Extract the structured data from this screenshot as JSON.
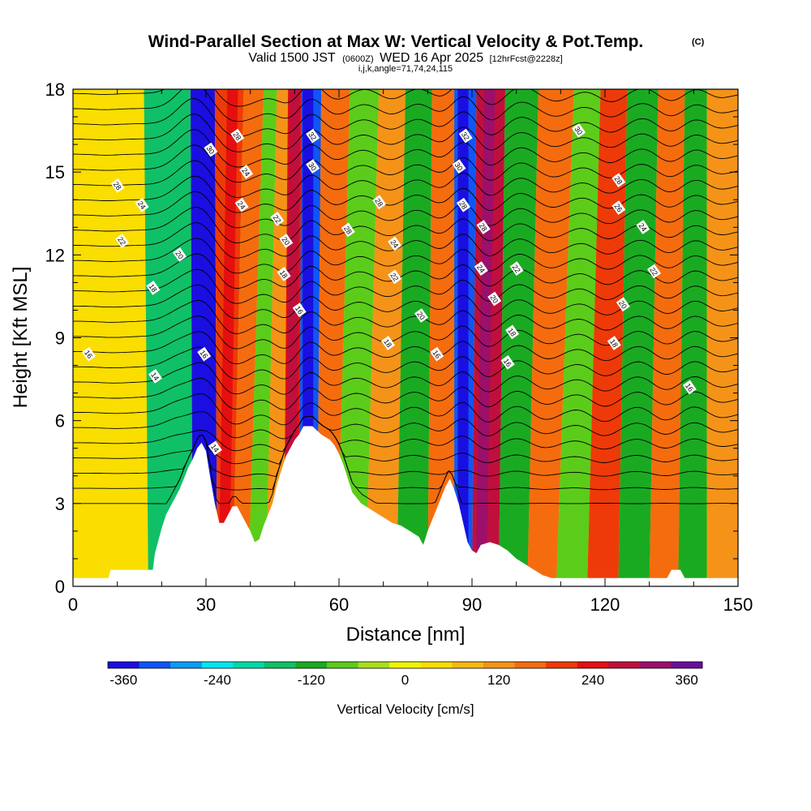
{
  "header": {
    "title": "Wind-Parallel Section at Max W: Vertical Velocity & Pot.Temp.",
    "title_mark": "(C)",
    "subtitle_main": "Valid 1500 JST",
    "subtitle_utc": "(0600Z)",
    "subtitle_date": "WED 16 Apr 2025",
    "subtitle_fcst": "[12hrFcst@2228z]",
    "section_info": "i,j,k,angle=71,74,24,115"
  },
  "chart_data": {
    "type": "heatmap",
    "xlabel": "Distance [nm]",
    "ylabel": "Height [Kft MSL]",
    "xlim": [
      0,
      150
    ],
    "ylim": [
      0,
      18
    ],
    "x_ticks": [
      0,
      30,
      60,
      90,
      120,
      150
    ],
    "y_ticks": [
      0,
      3,
      6,
      9,
      12,
      15,
      18
    ],
    "x_tick_labels": [
      "0",
      "30",
      "60",
      "90",
      "120",
      "150"
    ],
    "y_tick_labels": [
      "0",
      "3",
      "6",
      "9",
      "12",
      "15",
      "18"
    ],
    "terrain": {
      "x": [
        0,
        8,
        8.5,
        18,
        18.5,
        20,
        21,
        22,
        23,
        24,
        25,
        26,
        27,
        28,
        29,
        30,
        31,
        32,
        33,
        34,
        36,
        37,
        38,
        40,
        41,
        42,
        43,
        44,
        45,
        46,
        47,
        48,
        49,
        50,
        51,
        52,
        54,
        56,
        58,
        59,
        60,
        61,
        62,
        63,
        64,
        65,
        67,
        69,
        71,
        72,
        74,
        76,
        78,
        79,
        80,
        81,
        82,
        83,
        84,
        85,
        86,
        87,
        88,
        89,
        90,
        91,
        92,
        94,
        96,
        98,
        100,
        102,
        104,
        106,
        108,
        110,
        112,
        120,
        130,
        134,
        135,
        137,
        138,
        140,
        150
      ],
      "y": [
        0.3,
        0.3,
        0.6,
        0.6,
        1.2,
        2.1,
        2.6,
        2.9,
        3.2,
        3.5,
        3.9,
        4.3,
        4.6,
        5.0,
        5.2,
        4.9,
        3.9,
        3.0,
        2.3,
        2.3,
        2.9,
        2.9,
        2.6,
        2.0,
        1.6,
        1.7,
        2.2,
        2.6,
        3.0,
        3.7,
        4.2,
        4.7,
        5.0,
        5.3,
        5.5,
        5.8,
        5.8,
        5.5,
        5.3,
        5.1,
        4.8,
        4.4,
        3.9,
        3.4,
        3.2,
        3.0,
        2.8,
        2.6,
        2.4,
        2.3,
        2.2,
        2.0,
        1.8,
        1.5,
        2.0,
        2.4,
        2.8,
        3.2,
        3.6,
        3.9,
        3.5,
        3.0,
        2.3,
        1.6,
        1.3,
        1.2,
        1.5,
        1.6,
        1.5,
        1.3,
        1.0,
        0.8,
        0.6,
        0.4,
        0.3,
        0.3,
        0.3,
        0.3,
        0.3,
        0.3,
        0.6,
        0.6,
        0.3,
        0.3,
        0.3
      ]
    },
    "vertical_velocity_bands": [
      {
        "x_base": 11,
        "x_top": 7,
        "w": 20
      },
      {
        "x_base": 23,
        "x_top": 25,
        "w": -180
      },
      {
        "x_base": 31,
        "x_top": 28,
        "w": -360
      },
      {
        "x_base": 34,
        "x_top": 36,
        "w": 200
      },
      {
        "x_base": 38,
        "x_top": 41,
        "w": 140
      },
      {
        "x_base": 41,
        "x_top": 45,
        "w": -100
      },
      {
        "x_base": 46,
        "x_top": 47,
        "w": 120
      },
      {
        "x_base": 49,
        "x_top": 50,
        "w": 250
      },
      {
        "x_base": 53,
        "x_top": 53,
        "w": -340
      },
      {
        "x_base": 57,
        "x_top": 59,
        "w": 150
      },
      {
        "x_base": 62,
        "x_top": 66,
        "w": -100
      },
      {
        "x_base": 70,
        "x_top": 72,
        "w": 130
      },
      {
        "x_base": 76,
        "x_top": 78,
        "w": -120
      },
      {
        "x_base": 84,
        "x_top": 84,
        "w": 170
      },
      {
        "x_base": 88,
        "x_top": 88,
        "w": -330
      },
      {
        "x_base": 92,
        "x_top": 94,
        "w": 260
      },
      {
        "x_base": 100,
        "x_top": 101,
        "w": -140
      },
      {
        "x_base": 105,
        "x_top": 109,
        "w": 150
      },
      {
        "x_base": 113,
        "x_top": 117,
        "w": -80
      },
      {
        "x_base": 119,
        "x_top": 121,
        "w": 190
      },
      {
        "x_base": 127,
        "x_top": 129,
        "w": -120
      },
      {
        "x_base": 133,
        "x_top": 135,
        "w": 170
      },
      {
        "x_base": 140,
        "x_top": 141,
        "w": -140
      },
      {
        "x_base": 146,
        "x_top": 145,
        "w": 120
      }
    ],
    "theta_contour_labels": [
      {
        "text": "30",
        "x": 31,
        "y": 15.8
      },
      {
        "text": "28",
        "x": 37,
        "y": 16.3
      },
      {
        "text": "24",
        "x": 39,
        "y": 15.0
      },
      {
        "text": "24",
        "x": 38,
        "y": 13.8
      },
      {
        "text": "22",
        "x": 46,
        "y": 13.3
      },
      {
        "text": "20",
        "x": 48,
        "y": 12.5
      },
      {
        "text": "18",
        "x": 47.5,
        "y": 11.3
      },
      {
        "text": "16",
        "x": 51,
        "y": 10.0
      },
      {
        "text": "32",
        "x": 54,
        "y": 16.3
      },
      {
        "text": "30",
        "x": 54,
        "y": 15.2
      },
      {
        "text": "28",
        "x": 62,
        "y": 12.9
      },
      {
        "text": "28",
        "x": 69,
        "y": 13.9
      },
      {
        "text": "24",
        "x": 72.5,
        "y": 12.4
      },
      {
        "text": "22",
        "x": 72.5,
        "y": 11.2
      },
      {
        "text": "20",
        "x": 78.5,
        "y": 9.8
      },
      {
        "text": "18",
        "x": 71,
        "y": 8.8
      },
      {
        "text": "16",
        "x": 82,
        "y": 8.4
      },
      {
        "text": "32",
        "x": 88.5,
        "y": 16.3
      },
      {
        "text": "30",
        "x": 87,
        "y": 15.2
      },
      {
        "text": "28",
        "x": 88,
        "y": 13.8
      },
      {
        "text": "28",
        "x": 92.5,
        "y": 13.0
      },
      {
        "text": "24",
        "x": 92,
        "y": 11.5
      },
      {
        "text": "22",
        "x": 100,
        "y": 11.5
      },
      {
        "text": "20",
        "x": 95,
        "y": 10.4
      },
      {
        "text": "18",
        "x": 99,
        "y": 9.2
      },
      {
        "text": "16",
        "x": 98,
        "y": 8.1
      },
      {
        "text": "30",
        "x": 114,
        "y": 16.5
      },
      {
        "text": "28",
        "x": 123,
        "y": 14.7
      },
      {
        "text": "26",
        "x": 123,
        "y": 13.7
      },
      {
        "text": "24",
        "x": 128.5,
        "y": 13.0
      },
      {
        "text": "22",
        "x": 131,
        "y": 11.4
      },
      {
        "text": "20",
        "x": 124,
        "y": 10.2
      },
      {
        "text": "18",
        "x": 122,
        "y": 8.8
      },
      {
        "text": "16",
        "x": 139,
        "y": 7.2
      },
      {
        "text": "28",
        "x": 10,
        "y": 14.5
      },
      {
        "text": "24",
        "x": 15.5,
        "y": 13.8
      },
      {
        "text": "22",
        "x": 11,
        "y": 12.5
      },
      {
        "text": "20",
        "x": 24,
        "y": 12.0
      },
      {
        "text": "18",
        "x": 18,
        "y": 10.8
      },
      {
        "text": "16",
        "x": 3.5,
        "y": 8.4
      },
      {
        "text": "14",
        "x": 18.5,
        "y": 7.6
      },
      {
        "text": "16",
        "x": 29.5,
        "y": 8.4
      },
      {
        "text": "14",
        "x": 32,
        "y": 5.0
      }
    ]
  },
  "colorbar": {
    "label": "Vertical Velocity [cm/s]",
    "tick_labels": [
      "-360",
      "-240",
      "-120",
      "0",
      "120",
      "240",
      "360"
    ],
    "tick_values": [
      -360,
      -240,
      -120,
      0,
      120,
      240,
      360
    ],
    "colors": [
      "#1a0fe0",
      "#0f56f5",
      "#0a9cf5",
      "#00e6f0",
      "#00d8a8",
      "#10c066",
      "#1aaa22",
      "#5ccc1a",
      "#a8e01e",
      "#f0f500",
      "#fade00",
      "#f7b814",
      "#f59318",
      "#f56c0e",
      "#ee3a08",
      "#e60f0f",
      "#c00f3c",
      "#9c0f6a",
      "#6a0f9c"
    ]
  }
}
